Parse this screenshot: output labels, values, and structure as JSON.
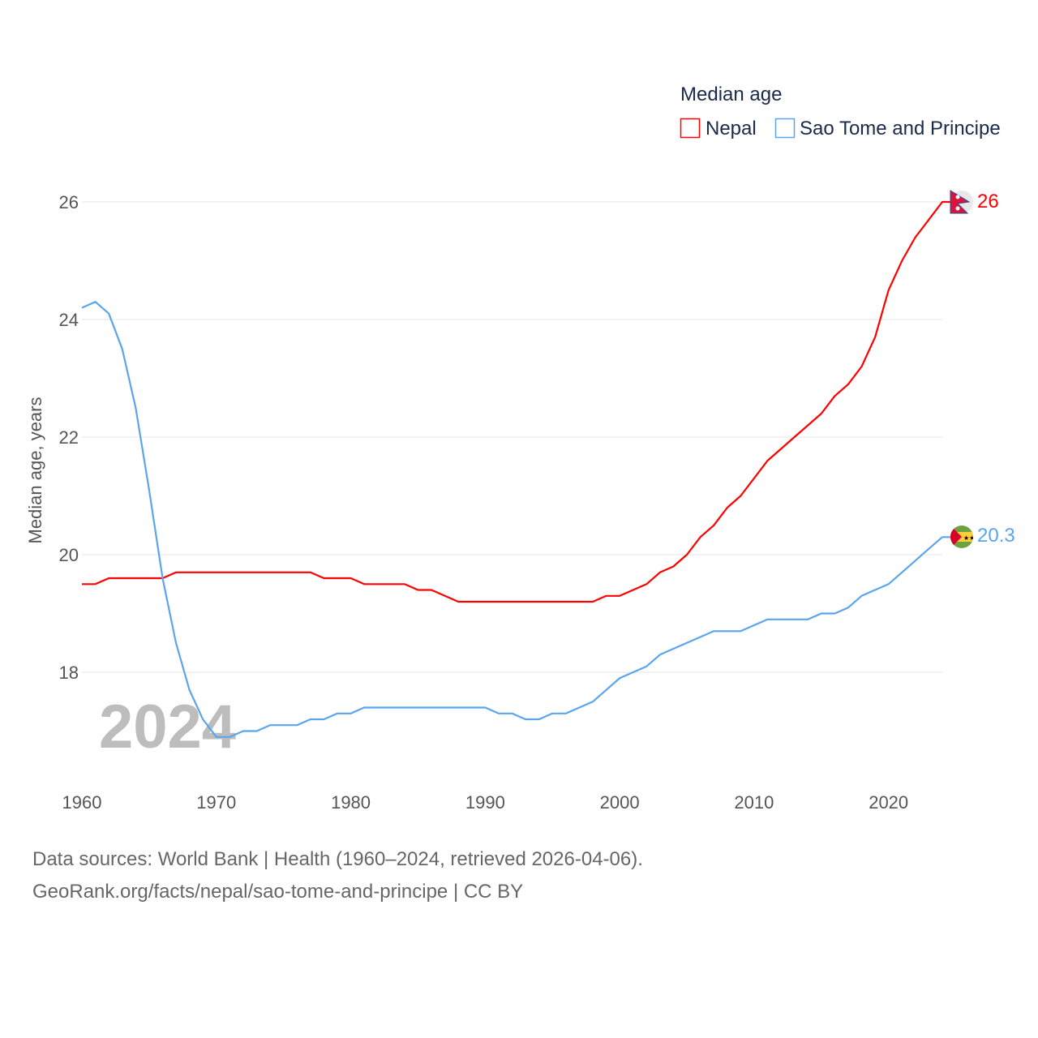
{
  "chart_data": {
    "type": "line",
    "title": "Median age",
    "ylabel": "Median age, years",
    "xlabel": "",
    "watermark_year": "2024",
    "x": [
      1960,
      1961,
      1962,
      1963,
      1964,
      1965,
      1966,
      1967,
      1968,
      1969,
      1970,
      1971,
      1972,
      1973,
      1974,
      1975,
      1976,
      1977,
      1978,
      1979,
      1980,
      1981,
      1982,
      1983,
      1984,
      1985,
      1986,
      1987,
      1988,
      1989,
      1990,
      1991,
      1992,
      1993,
      1994,
      1995,
      1996,
      1997,
      1998,
      1999,
      2000,
      2001,
      2002,
      2003,
      2004,
      2005,
      2006,
      2007,
      2008,
      2009,
      2010,
      2011,
      2012,
      2013,
      2014,
      2015,
      2016,
      2017,
      2018,
      2019,
      2020,
      2021,
      2022,
      2023,
      2024
    ],
    "xlim": [
      1960,
      2024
    ],
    "ylim": [
      16.2,
      26
    ],
    "xticks": [
      "1960",
      "1970",
      "1980",
      "1990",
      "2000",
      "2010",
      "2020"
    ],
    "yticks": [
      "18",
      "20",
      "22",
      "24",
      "26"
    ],
    "grid": true,
    "legend_position": "top-right",
    "series": [
      {
        "name": "Nepal",
        "color": "#ff0000",
        "end_label": "26",
        "flag": "nepal-flag",
        "values": [
          19.5,
          19.5,
          19.6,
          19.6,
          19.6,
          19.6,
          19.6,
          19.7,
          19.7,
          19.7,
          19.7,
          19.7,
          19.7,
          19.7,
          19.7,
          19.7,
          19.7,
          19.7,
          19.6,
          19.6,
          19.6,
          19.5,
          19.5,
          19.5,
          19.5,
          19.4,
          19.4,
          19.3,
          19.2,
          19.2,
          19.2,
          19.2,
          19.2,
          19.2,
          19.2,
          19.2,
          19.2,
          19.2,
          19.2,
          19.3,
          19.3,
          19.4,
          19.5,
          19.7,
          19.8,
          20.0,
          20.3,
          20.5,
          20.8,
          21.0,
          21.3,
          21.6,
          21.8,
          22.0,
          22.2,
          22.4,
          22.7,
          22.9,
          23.2,
          23.7,
          24.5,
          25.0,
          25.4,
          25.7,
          26.0
        ]
      },
      {
        "name": "Sao Tome and Principe",
        "color": "#5aa5ee",
        "end_label": "20.3",
        "flag": "sao-tome-flag",
        "values": [
          24.2,
          24.3,
          24.1,
          23.5,
          22.5,
          21.1,
          19.6,
          18.5,
          17.7,
          17.2,
          16.9,
          16.9,
          17.0,
          17.0,
          17.1,
          17.1,
          17.1,
          17.2,
          17.2,
          17.3,
          17.3,
          17.4,
          17.4,
          17.4,
          17.4,
          17.4,
          17.4,
          17.4,
          17.4,
          17.4,
          17.4,
          17.3,
          17.3,
          17.2,
          17.2,
          17.3,
          17.3,
          17.4,
          17.5,
          17.7,
          17.9,
          18.0,
          18.1,
          18.3,
          18.4,
          18.5,
          18.6,
          18.7,
          18.7,
          18.7,
          18.8,
          18.9,
          18.9,
          18.9,
          18.9,
          19.0,
          19.0,
          19.1,
          19.3,
          19.4,
          19.5,
          19.7,
          19.9,
          20.1,
          20.3
        ]
      }
    ]
  },
  "footer": {
    "source": "Data sources: World Bank | Health (1960–2024, retrieved 2026-04-06).",
    "url": "GeoRank.org/facts/nepal/sao-tome-and-principe | CC BY"
  }
}
